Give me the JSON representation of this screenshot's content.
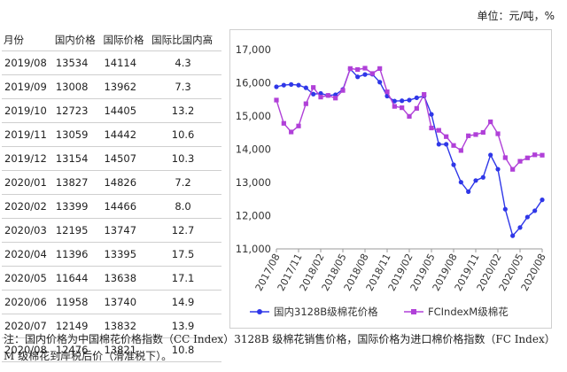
{
  "unit_label": "单位：元/吨，%",
  "table": {
    "headers": [
      "月份",
      "国内价格",
      "国际价格",
      "国际比国内高"
    ],
    "rows": [
      [
        "2019/08",
        "13534",
        "14114",
        "4.3"
      ],
      [
        "2019/09",
        "13008",
        "13962",
        "7.3"
      ],
      [
        "2019/10",
        "12723",
        "14405",
        "13.2"
      ],
      [
        "2019/11",
        "13059",
        "14442",
        "10.6"
      ],
      [
        "2019/12",
        "13154",
        "14507",
        "10.3"
      ],
      [
        "2020/01",
        "13827",
        "14826",
        "7.2"
      ],
      [
        "2020/02",
        "13399",
        "14466",
        "8.0"
      ],
      [
        "2020/03",
        "12195",
        "13747",
        "12.7"
      ],
      [
        "2020/04",
        "11396",
        "13395",
        "17.5"
      ],
      [
        "2020/05",
        "11644",
        "13638",
        "17.1"
      ],
      [
        "2020/06",
        "11958",
        "13740",
        "14.9"
      ],
      [
        "2020/07",
        "12149",
        "13832",
        "13.9"
      ],
      [
        "2020/08",
        "12476",
        "13821",
        "10.8"
      ]
    ]
  },
  "chart_data": {
    "type": "line",
    "x": [
      "2017/08",
      "2017/09",
      "2017/10",
      "2017/11",
      "2017/12",
      "2018/01",
      "2018/02",
      "2018/03",
      "2018/04",
      "2018/05",
      "2018/06",
      "2018/07",
      "2018/08",
      "2018/09",
      "2018/10",
      "2018/11",
      "2018/12",
      "2019/01",
      "2019/02",
      "2019/03",
      "2019/04",
      "2019/05",
      "2019/06",
      "2019/07",
      "2019/08",
      "2019/09",
      "2019/10",
      "2019/11",
      "2019/12",
      "2020/01",
      "2020/02",
      "2020/03",
      "2020/04",
      "2020/05",
      "2020/06",
      "2020/07",
      "2020/08"
    ],
    "xticks": [
      "2017/08",
      "2017/11",
      "2018/02",
      "2018/05",
      "2018/08",
      "2018/11",
      "2019/02",
      "2019/05",
      "2019/08",
      "2019/11",
      "2020/02",
      "2020/05",
      "2020/08"
    ],
    "yticks": [
      "11,000",
      "12,000",
      "13,000",
      "14,000",
      "15,000",
      "16,000",
      "17,000"
    ],
    "ylim": [
      11000,
      17000
    ],
    "grid": false,
    "legend_position": "bottom",
    "series": [
      {
        "name": "国内3128B级棉花价格",
        "color": "#2f37e8",
        "marker": "circle",
        "values": [
          15880,
          15930,
          15950,
          15930,
          15850,
          15660,
          15680,
          15620,
          15640,
          15800,
          16420,
          16180,
          16250,
          16260,
          16020,
          15600,
          15450,
          15460,
          15480,
          15550,
          15600,
          15050,
          14150,
          14150,
          13534,
          13008,
          12723,
          13059,
          13154,
          13827,
          13399,
          12195,
          11396,
          11644,
          11958,
          12149,
          12476
        ]
      },
      {
        "name": "FCIndexM级棉花",
        "color": "#b040d8",
        "marker": "square",
        "values": [
          15480,
          14780,
          14520,
          14700,
          15370,
          15860,
          15570,
          15620,
          15540,
          15770,
          16430,
          16400,
          16440,
          16280,
          16430,
          15730,
          15290,
          15250,
          14990,
          15230,
          15650,
          14640,
          14570,
          14380,
          14114,
          13962,
          14405,
          14442,
          14507,
          14826,
          14466,
          13747,
          13395,
          13638,
          13740,
          13832,
          13821
        ]
      }
    ]
  },
  "note": "注：国内价格为中国棉花价格指数（CC Index）3128B 级棉花销售价格，国际价格为进口棉价格指数（FC Index）M 级棉花到岸税后价（滑准税下）。"
}
